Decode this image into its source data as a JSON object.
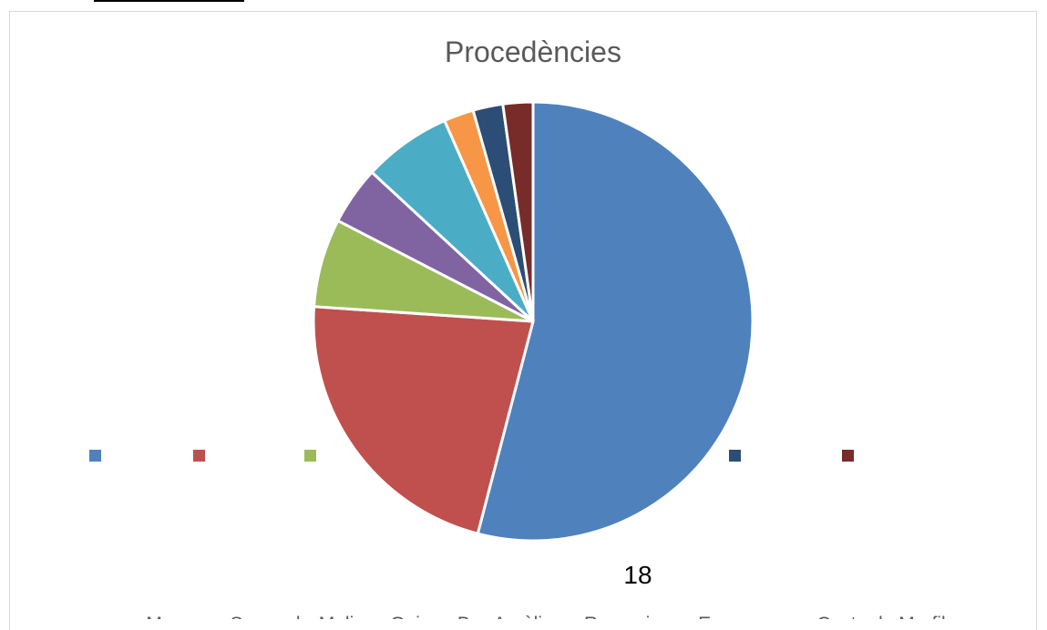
{
  "page_number": "18",
  "chart_data": {
    "type": "pie",
    "title": "Procedències",
    "categories": [
      "Marroc",
      "Senegal",
      "Mali",
      "Guinea B.",
      "Argèlia",
      "Rumania",
      "Espanya",
      "Costa de Marfil"
    ],
    "values": [
      54,
      22,
      6.5,
      4.3,
      6.5,
      2.2,
      2.2,
      2.2
    ],
    "colors": [
      "#4f81bd",
      "#c0504d",
      "#9bbb59",
      "#8064a2",
      "#4bacc6",
      "#f79646",
      "#2c4d75",
      "#772c2a"
    ],
    "legend_placement": "bottom",
    "legend_swatches_visible": [
      true,
      true,
      true,
      false,
      false,
      false,
      true,
      true
    ]
  }
}
